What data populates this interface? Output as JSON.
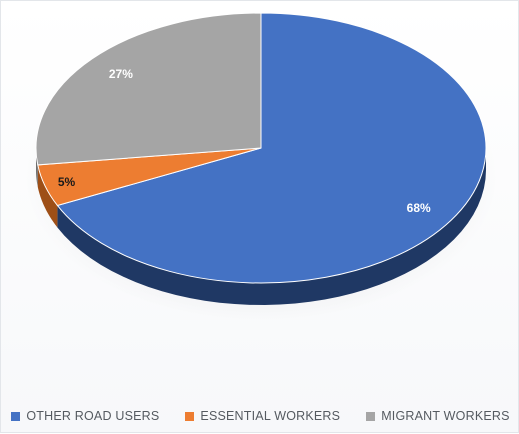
{
  "chart_data": {
    "type": "pie",
    "style": "3d",
    "start": "12 o'clock",
    "direction": "clockwise",
    "legend_position": "bottom",
    "slices": [
      {
        "label": "OTHER ROAD USERS",
        "value": 68,
        "display": "68%",
        "color": "#4472C4",
        "shade": "#1F3864",
        "label_color": "#ffffff"
      },
      {
        "label": "ESSENTIAL WORKERS",
        "value": 5,
        "display": "5%",
        "color": "#ED7D31",
        "shade": "#9E4F17",
        "label_color": "#1a1a1a"
      },
      {
        "label": "MIGRANT WORKERS",
        "value": 27,
        "display": "27%",
        "color": "#A5A5A5",
        "shade": "#6E6E6E",
        "label_color": "#ffffff"
      }
    ]
  }
}
